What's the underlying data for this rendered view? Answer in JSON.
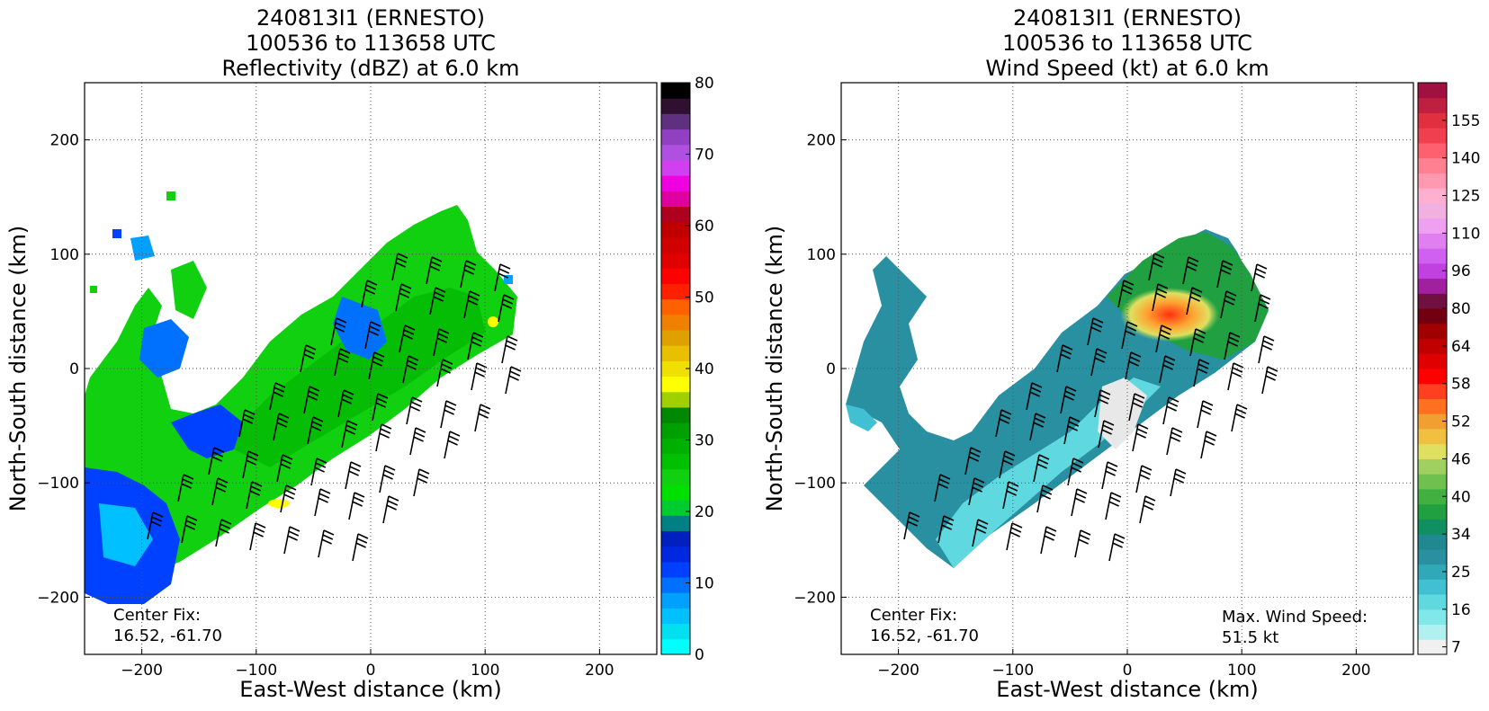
{
  "panels": [
    {
      "title_lines": [
        "240813I1 (ERNESTO)",
        "100536 to 113658 UTC",
        "Reflectivity (dBZ) at 6.0 km"
      ],
      "xlabel": "East-West distance (km)",
      "ylabel": "North-South distance (km)",
      "center_fix_label": "Center Fix:",
      "center_fix_value": "16.52, -61.70",
      "colorbar": {
        "tick_labels": [
          "0",
          "10",
          "20",
          "30",
          "40",
          "50",
          "60",
          "70",
          "80"
        ],
        "colors": [
          "#00ffff",
          "#00e0f0",
          "#00c0ff",
          "#00a0ff",
          "#0070ff",
          "#0040ff",
          "#0028e0",
          "#0020c0",
          "#008080",
          "#00cc30",
          "#00e000",
          "#10d010",
          "#00c000",
          "#00b000",
          "#00a000",
          "#008800",
          "#a0d000",
          "#ffff00",
          "#f0e000",
          "#e8c000",
          "#e0a000",
          "#f08000",
          "#ff6000",
          "#ff2000",
          "#ff0000",
          "#e00000",
          "#d00000",
          "#c00000",
          "#b00020",
          "#e000a0",
          "#f000e0",
          "#d040f0",
          "#b050e0",
          "#9040c0",
          "#603080",
          "#301030",
          "#000000"
        ]
      },
      "note": null
    },
    {
      "title_lines": [
        "240813I1 (ERNESTO)",
        "100536 to 113658 UTC",
        "Wind Speed (kt) at 6.0 km"
      ],
      "xlabel": "East-West distance (km)",
      "ylabel": "North-South distance (km)",
      "center_fix_label": "Center Fix:",
      "center_fix_value": "16.52, -61.70",
      "colorbar": {
        "tick_labels": [
          "7",
          "16",
          "25",
          "34",
          "40",
          "46",
          "52",
          "58",
          "64",
          "80",
          "96",
          "110",
          "125",
          "140",
          "155"
        ],
        "colors": [
          "#f0f0f0",
          "#b0f0f0",
          "#80e8e8",
          "#60d8e0",
          "#40c0d0",
          "#30a8b8",
          "#2890a0",
          "#208890",
          "#109060",
          "#20a040",
          "#40b040",
          "#70c050",
          "#a0d060",
          "#e0e060",
          "#f0c040",
          "#f0a030",
          "#ff7020",
          "#ff4020",
          "#ff0000",
          "#e00000",
          "#c00000",
          "#a00000",
          "#700010",
          "#701040",
          "#a020a0",
          "#c040e0",
          "#d060f0",
          "#e080f0",
          "#f0a0f0",
          "#f0b0e0",
          "#ffb0d0",
          "#ff98b0",
          "#ff8090",
          "#ff6070",
          "#f04050",
          "#e03040",
          "#c02040",
          "#a01040"
        ]
      },
      "note": {
        "label": "Max. Wind Speed:",
        "value": "51.5 kt"
      }
    }
  ],
  "chart_data": [
    {
      "type": "heatmap",
      "title": "240813I1 (ERNESTO) 100536 to 113658 UTC Reflectivity (dBZ) at 6.0 km",
      "xlabel": "East-West distance (km)",
      "ylabel": "North-South distance (km)",
      "xlim": [
        -250,
        250
      ],
      "ylim": [
        -250,
        250
      ],
      "xticks": [
        -200,
        -100,
        0,
        100,
        200
      ],
      "yticks": [
        -200,
        -100,
        0,
        100,
        200
      ],
      "grid": true,
      "colorbar_range": [
        0,
        80
      ],
      "colorbar_ticks": [
        0,
        10,
        20,
        30,
        40,
        50,
        60,
        70,
        80
      ],
      "field": "reflectivity",
      "overlay": "wind barbs"
    },
    {
      "type": "heatmap",
      "title": "240813I1 (ERNESTO) 100536 to 113658 UTC Wind Speed (kt) at 6.0 km",
      "xlabel": "East-West distance (km)",
      "ylabel": "North-South distance (km)",
      "xlim": [
        -250,
        250
      ],
      "ylim": [
        -250,
        250
      ],
      "xticks": [
        -200,
        -100,
        0,
        100,
        200
      ],
      "yticks": [
        -200,
        -100,
        0,
        100,
        200
      ],
      "grid": true,
      "colorbar_ticks": [
        7,
        16,
        25,
        34,
        40,
        46,
        52,
        58,
        64,
        80,
        96,
        110,
        125,
        140,
        155
      ],
      "field": "wind speed",
      "overlay": "wind barbs",
      "max_wind_speed_kt": 51.5
    }
  ]
}
